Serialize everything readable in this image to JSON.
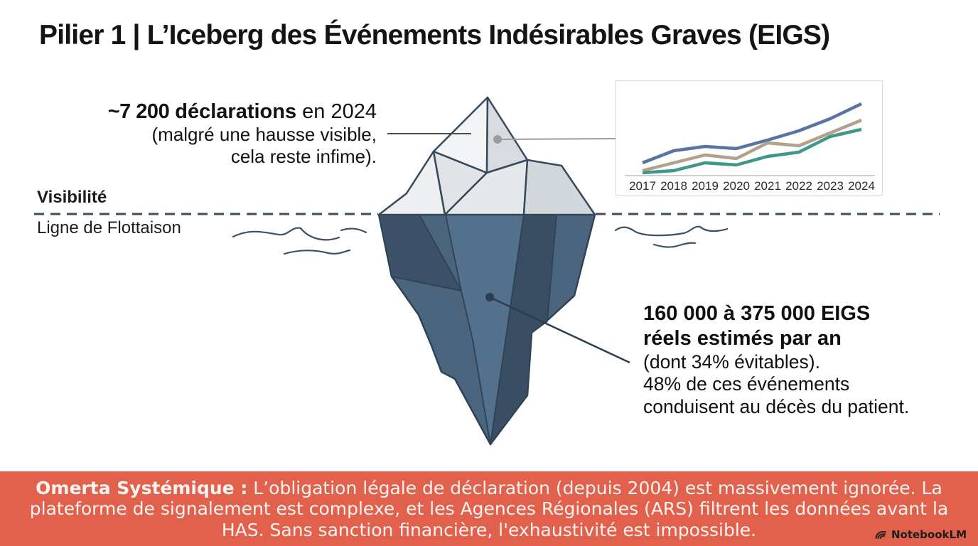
{
  "title": "Pilier 1 | L’Iceberg des Événements Indésirables Graves (EIGS)",
  "left_annotation": {
    "line1_strong": "~7 200",
    "line1_bold": " déclarations",
    "line1_rest": " en 2024",
    "line2": "(malgré une hausse visible,",
    "line3": "cela reste infime)."
  },
  "waterline": {
    "label_above": "Visibilité",
    "label_below": "Ligne de Flottaison"
  },
  "chart_data": {
    "type": "line",
    "x": [
      "2017",
      "2018",
      "2019",
      "2020",
      "2021",
      "2022",
      "2023",
      "2024"
    ],
    "series": [
      {
        "name": "blue",
        "color": "#5873a4",
        "values": [
          18,
          35,
          41,
          38,
          50,
          63,
          80,
          101
        ]
      },
      {
        "name": "tan",
        "color": "#b2a28c",
        "values": [
          7,
          18,
          29,
          24,
          46,
          42,
          60,
          78
        ]
      },
      {
        "name": "teal",
        "color": "#3f968a",
        "values": [
          4,
          7,
          18,
          15,
          27,
          33,
          55,
          65
        ]
      }
    ],
    "title": "",
    "xlabel": "",
    "ylabel": "",
    "note": "values are relative trend heights; no y-axis ticks, gridlines or legend are shown",
    "grid": false,
    "legend": false,
    "axis_color": "#cfcfcf"
  },
  "right_annotation": {
    "line1": "160 000 à 375 000 EIGS",
    "line2": "réels estimés par an",
    "line3": "(dont 34% évitables).",
    "line4": "48% de ces événements",
    "line5": "conduisent au décès du patient."
  },
  "banner": {
    "line1_lead": "Omerta Systémique :",
    "line1_rest": " L’obligation légale de déclaration (depuis 2004) est massivement ignorée. La",
    "line2": "plateforme de signalement est complexe, et les Agences Régionales (ARS) filtrent les données avant la",
    "line3": "HAS. Sans sanction financière, l'exhaustivité est impossible.",
    "bg_color": "#e2614c",
    "text_color": "#fdf4f1"
  },
  "branding": {
    "label": "NotebookLM"
  },
  "colors": {
    "iceberg_above_light": "#f2f4f5",
    "iceberg_above_mid": "#e4e7ea",
    "iceberg_above_dark": "#d3d8dc",
    "iceberg_below_base": "#4b657f",
    "iceberg_below_dark": "#3a4e63",
    "iceberg_below_light": "#53708c",
    "outline_above": "#37495b",
    "outline_below": "#2e4254",
    "waterline_dash": "#3c4d60",
    "connector_gray": "#9c9c9c",
    "connector_dark": "#2b3d4f"
  }
}
